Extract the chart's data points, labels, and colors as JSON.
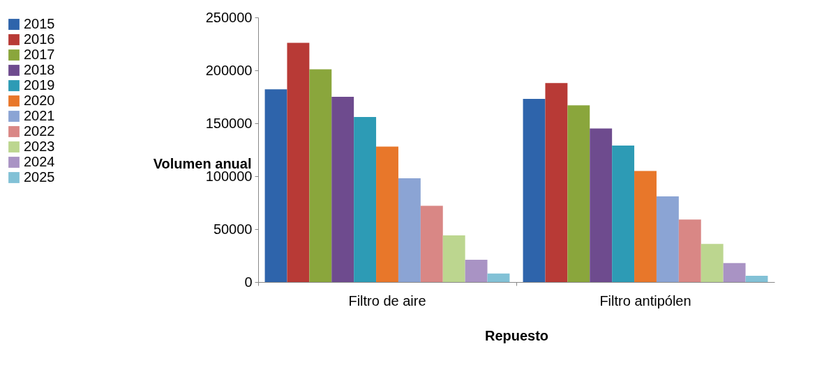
{
  "chart_data": {
    "type": "bar",
    "xlabel": "Repuesto",
    "ylabel": "Volumen anual",
    "categories": [
      "Filtro de aire",
      "Filtro antipólen"
    ],
    "ylim": [
      0,
      250000
    ],
    "yticks": [
      0,
      50000,
      100000,
      150000,
      200000,
      250000
    ],
    "grid": false,
    "legend": "left",
    "series": [
      {
        "name": "2015",
        "color": "#2e64ab",
        "values": [
          182000,
          173000
        ]
      },
      {
        "name": "2016",
        "color": "#b83a36",
        "values": [
          226000,
          188000
        ]
      },
      {
        "name": "2017",
        "color": "#8aa63c",
        "values": [
          201000,
          167000
        ]
      },
      {
        "name": "2018",
        "color": "#6e4b8e",
        "values": [
          175000,
          145000
        ]
      },
      {
        "name": "2019",
        "color": "#2d9bb5",
        "values": [
          156000,
          129000
        ]
      },
      {
        "name": "2020",
        "color": "#e8772a",
        "values": [
          128000,
          105000
        ]
      },
      {
        "name": "2021",
        "color": "#8ba4d4",
        "values": [
          98000,
          81000
        ]
      },
      {
        "name": "2022",
        "color": "#d98785",
        "values": [
          72000,
          59000
        ]
      },
      {
        "name": "2023",
        "color": "#bcd68f",
        "values": [
          44000,
          36000
        ]
      },
      {
        "name": "2024",
        "color": "#a993c4",
        "values": [
          21000,
          18000
        ]
      },
      {
        "name": "2025",
        "color": "#82c1d6",
        "values": [
          8000,
          6000
        ]
      }
    ]
  }
}
